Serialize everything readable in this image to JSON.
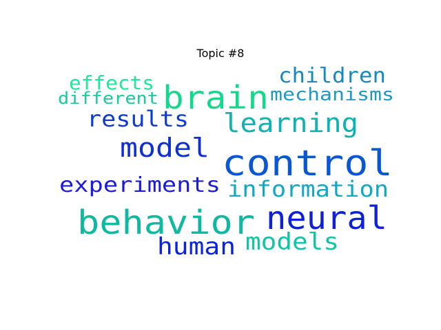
{
  "chart_data": {
    "type": "wordcloud",
    "title": "Topic #8",
    "words": [
      {
        "text": "control",
        "color": "#0a57d4"
      },
      {
        "text": "behavior",
        "color": "#0fb8a0"
      },
      {
        "text": "brain",
        "color": "#14d98c"
      },
      {
        "text": "neural",
        "color": "#0d22d6"
      },
      {
        "text": "learning",
        "color": "#0cb3b3"
      },
      {
        "text": "model",
        "color": "#1030d6"
      },
      {
        "text": "information",
        "color": "#10a8c4"
      },
      {
        "text": "experiments",
        "color": "#1a1ae0"
      },
      {
        "text": "models",
        "color": "#10c4a8"
      },
      {
        "text": "human",
        "color": "#0b22e0"
      },
      {
        "text": "results",
        "color": "#0d3cd0"
      },
      {
        "text": "children",
        "color": "#1888c0"
      },
      {
        "text": "mechanisms",
        "color": "#1f98c4"
      },
      {
        "text": "effects",
        "color": "#1ee89a"
      },
      {
        "text": "different",
        "color": "#18cc9a"
      }
    ]
  }
}
